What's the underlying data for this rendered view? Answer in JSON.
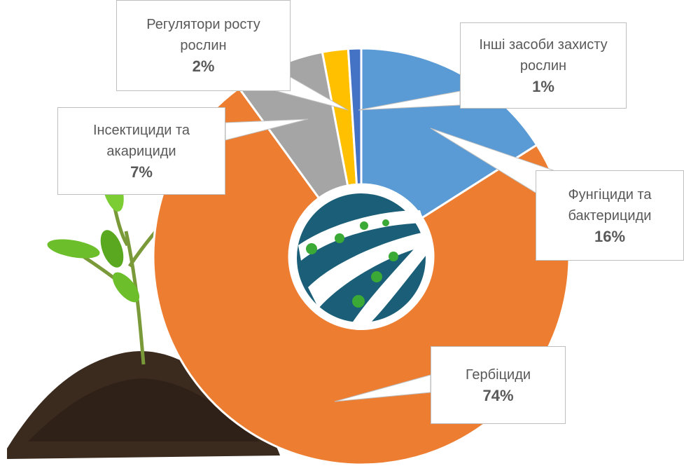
{
  "chart_data": {
    "type": "donut",
    "categories": [
      "Фунгіциди та бактерициди",
      "Гербіциди",
      "Інсектициди та акарициди",
      "Регулятори росту рослин",
      "Інші засоби захисту рослин"
    ],
    "values": [
      16,
      74,
      7,
      2,
      1
    ],
    "value_labels": [
      "16%",
      "74%",
      "7%",
      "2%",
      "1%"
    ],
    "colors": [
      "#5b9bd5",
      "#ed7d31",
      "#a5a5a5",
      "#ffc000",
      "#4472c4"
    ]
  }
}
